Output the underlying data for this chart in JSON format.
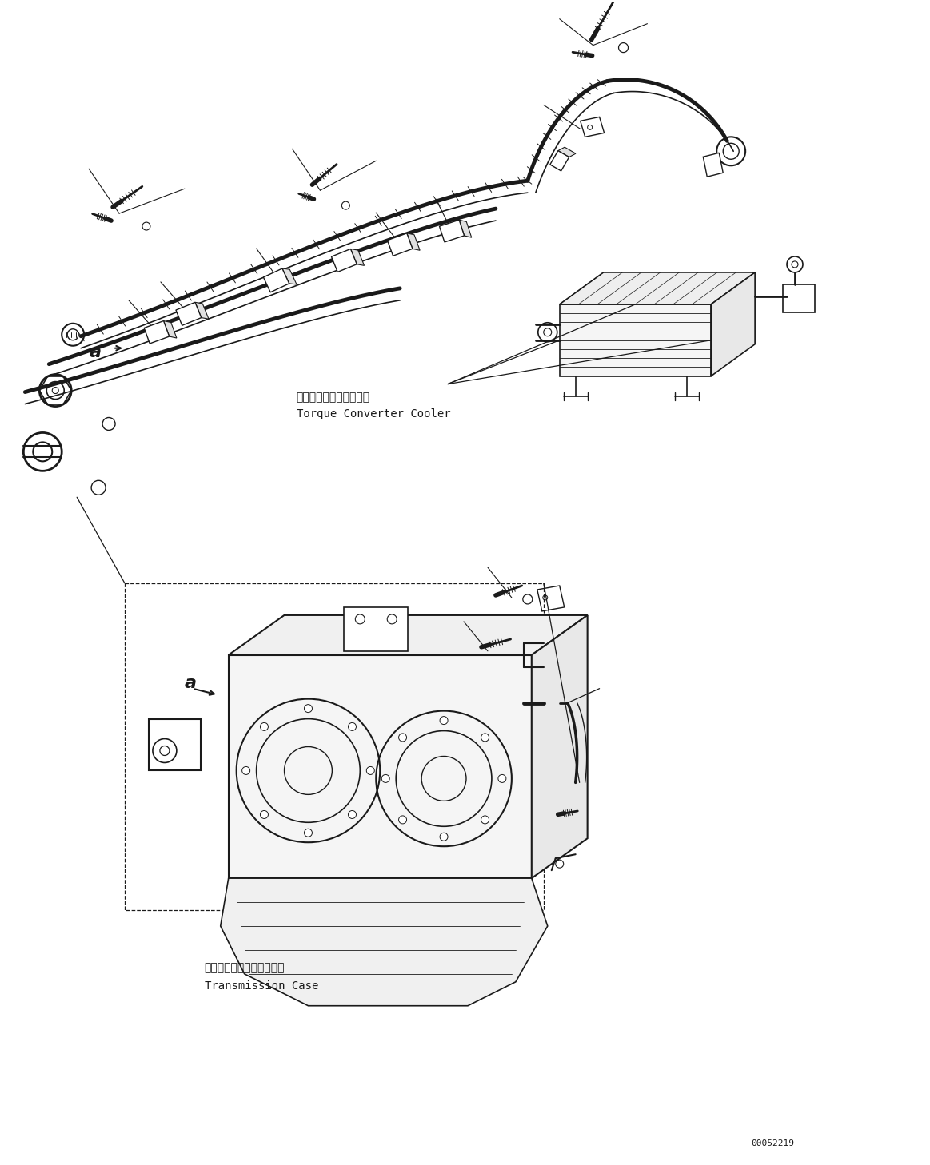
{
  "bg_color": "#ffffff",
  "lc": "#1a1a1a",
  "fig_width": 11.63,
  "fig_height": 14.58,
  "dpi": 100,
  "label_torque_jp": "トルクコンバータクーラ",
  "label_torque_en": "Torque Converter Cooler",
  "label_trans_jp": "トランスミッションケース",
  "label_trans_en": "Transmission Case",
  "part_number": "00052219",
  "font_size_jp": 10,
  "font_size_en": 10,
  "font_size_partnum": 8,
  "font_size_a": 16
}
